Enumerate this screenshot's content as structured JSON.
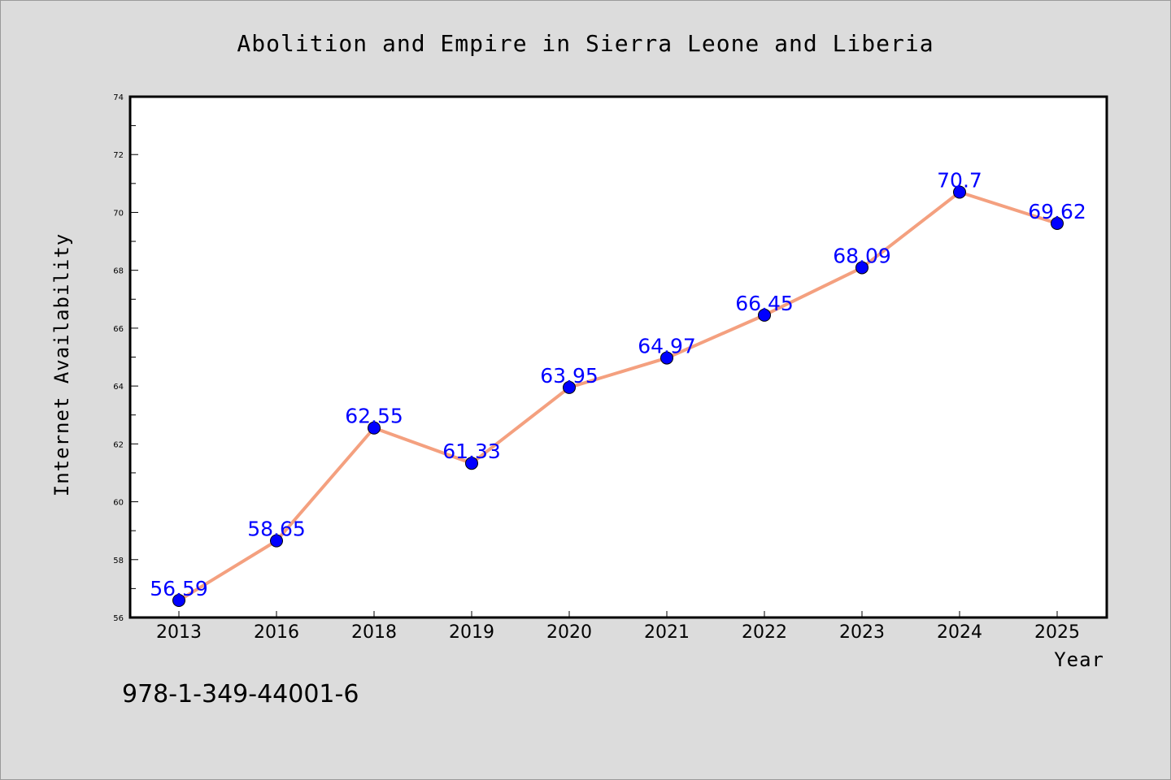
{
  "chart_data": {
    "type": "line",
    "title": "Abolition and Empire in Sierra Leone and Liberia",
    "xlabel": "Year",
    "ylabel": "Internet Availability",
    "categories": [
      "2013",
      "2016",
      "2018",
      "2019",
      "2020",
      "2021",
      "2022",
      "2023",
      "2024",
      "2025"
    ],
    "series": [
      {
        "values": [
          56.59,
          58.65,
          62.55,
          61.33,
          63.95,
          64.97,
          66.45,
          68.09,
          70.7,
          69.62
        ],
        "line_color": "#f4a07f",
        "marker_color": "#0000ff",
        "label_color": "#0000ff"
      }
    ],
    "data_labels": [
      "56.59",
      "58.65",
      "62.55",
      "61.33",
      "63.95",
      "64.97",
      "66.45",
      "68.09",
      "70.7",
      "69.62"
    ],
    "ylim": [
      56,
      74
    ],
    "yticks": [
      "56",
      "58",
      "60",
      "62",
      "64",
      "66",
      "68",
      "70",
      "72",
      "74"
    ],
    "grid": false,
    "legend": "none"
  },
  "footer": {
    "isbn": "978-1-349-44001-6"
  },
  "colors": {
    "background": "#dcdcdc",
    "plot_background": "#ffffff"
  }
}
